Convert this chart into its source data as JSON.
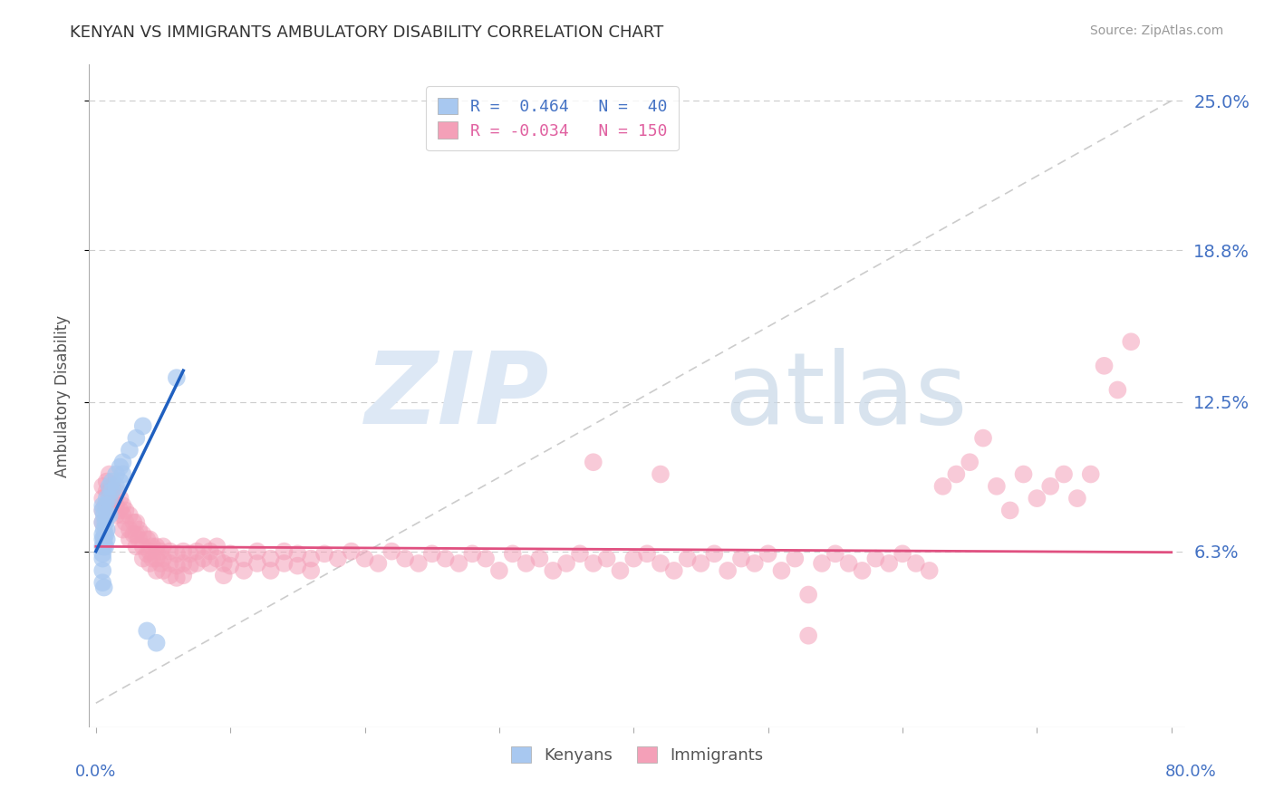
{
  "title": "KENYAN VS IMMIGRANTS AMBULATORY DISABILITY CORRELATION CHART",
  "source": "Source: ZipAtlas.com",
  "ylabel": "Ambulatory Disability",
  "ytick_labels": [
    "6.3%",
    "12.5%",
    "18.8%",
    "25.0%"
  ],
  "ytick_values": [
    0.063,
    0.125,
    0.188,
    0.25
  ],
  "xtick_values": [
    0.0,
    0.1,
    0.2,
    0.3,
    0.4,
    0.5,
    0.6,
    0.7,
    0.8
  ],
  "kenyan_color": "#a8c8f0",
  "immigrant_color": "#f4a0b8",
  "kenyan_line_color": "#2060c0",
  "immigrant_line_color": "#e05080",
  "background_color": "#ffffff",
  "xmin": 0.0,
  "xmax": 0.8,
  "ymin": 0.0,
  "ymax": 0.265,
  "kenyan_points": [
    [
      0.005,
      0.075
    ],
    [
      0.005,
      0.08
    ],
    [
      0.005,
      0.082
    ],
    [
      0.005,
      0.07
    ],
    [
      0.005,
      0.068
    ],
    [
      0.005,
      0.065
    ],
    [
      0.005,
      0.062
    ],
    [
      0.005,
      0.06
    ],
    [
      0.006,
      0.078
    ],
    [
      0.006,
      0.072
    ],
    [
      0.006,
      0.068
    ],
    [
      0.006,
      0.065
    ],
    [
      0.007,
      0.082
    ],
    [
      0.007,
      0.075
    ],
    [
      0.007,
      0.07
    ],
    [
      0.007,
      0.065
    ],
    [
      0.008,
      0.085
    ],
    [
      0.008,
      0.078
    ],
    [
      0.008,
      0.072
    ],
    [
      0.008,
      0.068
    ],
    [
      0.01,
      0.09
    ],
    [
      0.01,
      0.085
    ],
    [
      0.01,
      0.078
    ],
    [
      0.012,
      0.092
    ],
    [
      0.012,
      0.088
    ],
    [
      0.015,
      0.095
    ],
    [
      0.015,
      0.09
    ],
    [
      0.018,
      0.098
    ],
    [
      0.018,
      0.092
    ],
    [
      0.02,
      0.1
    ],
    [
      0.02,
      0.095
    ],
    [
      0.025,
      0.105
    ],
    [
      0.03,
      0.11
    ],
    [
      0.035,
      0.115
    ],
    [
      0.038,
      0.03
    ],
    [
      0.045,
      0.025
    ],
    [
      0.06,
      0.135
    ],
    [
      0.005,
      0.055
    ],
    [
      0.005,
      0.05
    ],
    [
      0.006,
      0.048
    ]
  ],
  "immigrant_points": [
    [
      0.005,
      0.09
    ],
    [
      0.005,
      0.085
    ],
    [
      0.005,
      0.08
    ],
    [
      0.005,
      0.075
    ],
    [
      0.008,
      0.092
    ],
    [
      0.008,
      0.088
    ],
    [
      0.008,
      0.082
    ],
    [
      0.01,
      0.095
    ],
    [
      0.01,
      0.088
    ],
    [
      0.01,
      0.082
    ],
    [
      0.012,
      0.09
    ],
    [
      0.012,
      0.085
    ],
    [
      0.015,
      0.088
    ],
    [
      0.015,
      0.082
    ],
    [
      0.015,
      0.078
    ],
    [
      0.018,
      0.085
    ],
    [
      0.018,
      0.08
    ],
    [
      0.02,
      0.082
    ],
    [
      0.02,
      0.078
    ],
    [
      0.02,
      0.072
    ],
    [
      0.022,
      0.08
    ],
    [
      0.022,
      0.075
    ],
    [
      0.025,
      0.078
    ],
    [
      0.025,
      0.072
    ],
    [
      0.025,
      0.068
    ],
    [
      0.028,
      0.075
    ],
    [
      0.028,
      0.07
    ],
    [
      0.03,
      0.075
    ],
    [
      0.03,
      0.07
    ],
    [
      0.03,
      0.065
    ],
    [
      0.032,
      0.072
    ],
    [
      0.032,
      0.068
    ],
    [
      0.035,
      0.07
    ],
    [
      0.035,
      0.065
    ],
    [
      0.035,
      0.06
    ],
    [
      0.038,
      0.068
    ],
    [
      0.038,
      0.062
    ],
    [
      0.04,
      0.068
    ],
    [
      0.04,
      0.063
    ],
    [
      0.04,
      0.058
    ],
    [
      0.042,
      0.065
    ],
    [
      0.042,
      0.06
    ],
    [
      0.045,
      0.065
    ],
    [
      0.045,
      0.06
    ],
    [
      0.045,
      0.055
    ],
    [
      0.048,
      0.063
    ],
    [
      0.048,
      0.058
    ],
    [
      0.05,
      0.065
    ],
    [
      0.05,
      0.06
    ],
    [
      0.05,
      0.055
    ],
    [
      0.055,
      0.063
    ],
    [
      0.055,
      0.058
    ],
    [
      0.055,
      0.053
    ],
    [
      0.06,
      0.062
    ],
    [
      0.06,
      0.057
    ],
    [
      0.06,
      0.052
    ],
    [
      0.065,
      0.063
    ],
    [
      0.065,
      0.058
    ],
    [
      0.065,
      0.053
    ],
    [
      0.07,
      0.062
    ],
    [
      0.07,
      0.057
    ],
    [
      0.075,
      0.063
    ],
    [
      0.075,
      0.058
    ],
    [
      0.08,
      0.065
    ],
    [
      0.08,
      0.06
    ],
    [
      0.085,
      0.063
    ],
    [
      0.085,
      0.058
    ],
    [
      0.09,
      0.065
    ],
    [
      0.09,
      0.06
    ],
    [
      0.095,
      0.058
    ],
    [
      0.095,
      0.053
    ],
    [
      0.1,
      0.062
    ],
    [
      0.1,
      0.057
    ],
    [
      0.11,
      0.06
    ],
    [
      0.11,
      0.055
    ],
    [
      0.12,
      0.063
    ],
    [
      0.12,
      0.058
    ],
    [
      0.13,
      0.06
    ],
    [
      0.13,
      0.055
    ],
    [
      0.14,
      0.063
    ],
    [
      0.14,
      0.058
    ],
    [
      0.15,
      0.062
    ],
    [
      0.15,
      0.057
    ],
    [
      0.16,
      0.06
    ],
    [
      0.16,
      0.055
    ],
    [
      0.17,
      0.062
    ],
    [
      0.18,
      0.06
    ],
    [
      0.19,
      0.063
    ],
    [
      0.2,
      0.06
    ],
    [
      0.21,
      0.058
    ],
    [
      0.22,
      0.063
    ],
    [
      0.23,
      0.06
    ],
    [
      0.24,
      0.058
    ],
    [
      0.25,
      0.062
    ],
    [
      0.26,
      0.06
    ],
    [
      0.27,
      0.058
    ],
    [
      0.28,
      0.062
    ],
    [
      0.29,
      0.06
    ],
    [
      0.3,
      0.055
    ],
    [
      0.31,
      0.062
    ],
    [
      0.32,
      0.058
    ],
    [
      0.33,
      0.06
    ],
    [
      0.34,
      0.055
    ],
    [
      0.35,
      0.058
    ],
    [
      0.36,
      0.062
    ],
    [
      0.37,
      0.058
    ],
    [
      0.38,
      0.06
    ],
    [
      0.39,
      0.055
    ],
    [
      0.4,
      0.06
    ],
    [
      0.41,
      0.062
    ],
    [
      0.42,
      0.058
    ],
    [
      0.43,
      0.055
    ],
    [
      0.44,
      0.06
    ],
    [
      0.45,
      0.058
    ],
    [
      0.46,
      0.062
    ],
    [
      0.47,
      0.055
    ],
    [
      0.48,
      0.06
    ],
    [
      0.49,
      0.058
    ],
    [
      0.5,
      0.062
    ],
    [
      0.51,
      0.055
    ],
    [
      0.52,
      0.06
    ],
    [
      0.53,
      0.045
    ],
    [
      0.54,
      0.058
    ],
    [
      0.55,
      0.062
    ],
    [
      0.56,
      0.058
    ],
    [
      0.57,
      0.055
    ],
    [
      0.58,
      0.06
    ],
    [
      0.59,
      0.058
    ],
    [
      0.6,
      0.062
    ],
    [
      0.61,
      0.058
    ],
    [
      0.62,
      0.055
    ],
    [
      0.63,
      0.09
    ],
    [
      0.64,
      0.095
    ],
    [
      0.65,
      0.1
    ],
    [
      0.66,
      0.11
    ],
    [
      0.67,
      0.09
    ],
    [
      0.68,
      0.08
    ],
    [
      0.69,
      0.095
    ],
    [
      0.7,
      0.085
    ],
    [
      0.71,
      0.09
    ],
    [
      0.72,
      0.095
    ],
    [
      0.73,
      0.085
    ],
    [
      0.74,
      0.095
    ],
    [
      0.75,
      0.14
    ],
    [
      0.76,
      0.13
    ],
    [
      0.77,
      0.15
    ],
    [
      0.37,
      0.1
    ],
    [
      0.42,
      0.095
    ],
    [
      0.53,
      0.028
    ]
  ],
  "kenyan_trend": [
    0.0,
    0.063,
    0.065,
    0.135
  ],
  "immigrant_trend_slope": -0.003,
  "immigrant_trend_intercept": 0.065
}
